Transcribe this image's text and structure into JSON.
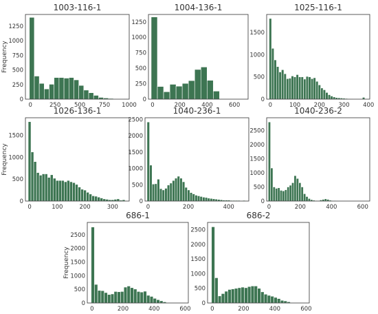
{
  "colors": {
    "bar": "#3d7552",
    "axes": "#333333",
    "background": "#ffffff"
  },
  "chart_data": [
    {
      "type": "bar",
      "title": "1003-116-1",
      "ylabel": "Frequency",
      "xlim": [
        -50,
        1000
      ],
      "ylim": [
        0,
        1450
      ],
      "xticks": [
        0,
        250,
        500,
        750,
        1000
      ],
      "yticks": [
        0,
        250,
        500,
        750,
        1000,
        1250
      ],
      "bin_start": -10,
      "bin_width": 50,
      "values": [
        1400,
        395,
        270,
        175,
        255,
        370,
        370,
        360,
        370,
        330,
        235,
        155,
        110,
        65,
        30,
        20,
        12,
        5,
        2,
        1
      ]
    },
    {
      "type": "bar",
      "title": "1004-136-1",
      "ylabel": "",
      "xlim": [
        -30,
        700
      ],
      "ylim": [
        0,
        1370
      ],
      "xticks": [
        0,
        200,
        400,
        600
      ],
      "yticks": [
        0,
        250,
        500,
        750,
        1000,
        1250
      ],
      "bin_start": -10,
      "bin_width": 45.5,
      "values": [
        1330,
        205,
        120,
        240,
        210,
        255,
        300,
        480,
        520,
        305,
        130,
        5,
        3,
        2
      ]
    },
    {
      "type": "bar",
      "title": "1025-116-1",
      "ylabel": "",
      "xlim": [
        -15,
        405
      ],
      "ylim": [
        0,
        1900
      ],
      "xticks": [
        0,
        100,
        200,
        300,
        400
      ],
      "yticks": [
        0,
        500,
        1000,
        1500
      ],
      "bin_start": -5,
      "bin_width": 10,
      "values": [
        1810,
        1140,
        880,
        730,
        610,
        660,
        570,
        460,
        470,
        520,
        500,
        550,
        500,
        500,
        450,
        510,
        500,
        460,
        480,
        400,
        320,
        250,
        210,
        150,
        100,
        70,
        50,
        35,
        30,
        25,
        20,
        15,
        10,
        8,
        6,
        5,
        4,
        3,
        40
      ]
    },
    {
      "type": "bar",
      "title": "1026-136-1",
      "ylabel": "Frequency",
      "xlim": [
        -15,
        360
      ],
      "ylim": [
        0,
        1900
      ],
      "xticks": [
        0,
        100,
        200,
        300
      ],
      "yticks": [
        0,
        500,
        1000,
        1500
      ],
      "bin_start": -5,
      "bin_width": 10,
      "values": [
        1810,
        1120,
        900,
        650,
        590,
        620,
        620,
        540,
        600,
        520,
        470,
        470,
        470,
        440,
        470,
        440,
        420,
        380,
        320,
        270,
        250,
        200,
        160,
        120,
        110,
        90,
        70,
        50,
        40,
        30,
        30,
        40,
        50,
        20,
        30
      ]
    },
    {
      "type": "bar",
      "title": "1040-236-1",
      "ylabel": "",
      "xlim": [
        -15,
        500
      ],
      "ylim": [
        0,
        2550
      ],
      "xticks": [
        0,
        200,
        400
      ],
      "yticks": [
        0,
        500,
        1000,
        1500,
        2000,
        2500
      ],
      "bin_start": -5,
      "bin_width": 12.5,
      "values": [
        2420,
        1100,
        520,
        530,
        670,
        380,
        340,
        390,
        490,
        550,
        630,
        700,
        760,
        700,
        590,
        420,
        340,
        260,
        220,
        180,
        160,
        140,
        120,
        110,
        90,
        80,
        70,
        60,
        50,
        40,
        30,
        30,
        30,
        20,
        20,
        20,
        20,
        10,
        20,
        10
      ]
    },
    {
      "type": "bar",
      "title": "1040-236-2",
      "ylabel": "",
      "xlim": [
        -15,
        645
      ],
      "ylim": [
        0,
        2950
      ],
      "xticks": [
        0,
        200,
        400,
        600
      ],
      "yticks": [
        0,
        500,
        1000,
        1500,
        2000,
        2500
      ],
      "bin_start": -5,
      "bin_width": 15,
      "values": [
        2800,
        1170,
        500,
        450,
        470,
        380,
        360,
        400,
        500,
        560,
        650,
        900,
        800,
        650,
        500,
        260,
        160,
        90,
        50,
        30,
        20,
        20,
        40,
        60,
        80,
        60,
        30,
        20,
        20,
        15,
        10,
        10,
        10,
        10,
        10,
        5,
        5,
        5,
        5
      ]
    },
    {
      "type": "bar",
      "title": "686-1",
      "ylabel": "Frequency",
      "xlim": [
        -30,
        620
      ],
      "ylim": [
        0,
        2950
      ],
      "xticks": [
        0,
        200,
        400,
        600
      ],
      "yticks": [
        0,
        500,
        1000,
        1500,
        2000,
        2500
      ],
      "bin_start": -5,
      "bin_width": 21,
      "values": [
        2780,
        680,
        460,
        450,
        380,
        310,
        330,
        420,
        410,
        420,
        580,
        620,
        560,
        510,
        420,
        400,
        430,
        280,
        240,
        170,
        120,
        80,
        40,
        10,
        5,
        5
      ]
    },
    {
      "type": "bar",
      "title": "686-2",
      "ylabel": "",
      "xlim": [
        -30,
        620
      ],
      "ylim": [
        0,
        2750
      ],
      "xticks": [
        0,
        200,
        400,
        600
      ],
      "yticks": [
        0,
        500,
        1000,
        1500,
        2000,
        2500
      ],
      "bin_start": -5,
      "bin_width": 21,
      "values": [
        2600,
        860,
        240,
        320,
        400,
        460,
        480,
        500,
        520,
        540,
        520,
        560,
        580,
        580,
        500,
        380,
        300,
        260,
        230,
        190,
        150,
        90,
        70,
        40,
        10,
        5
      ]
    }
  ]
}
